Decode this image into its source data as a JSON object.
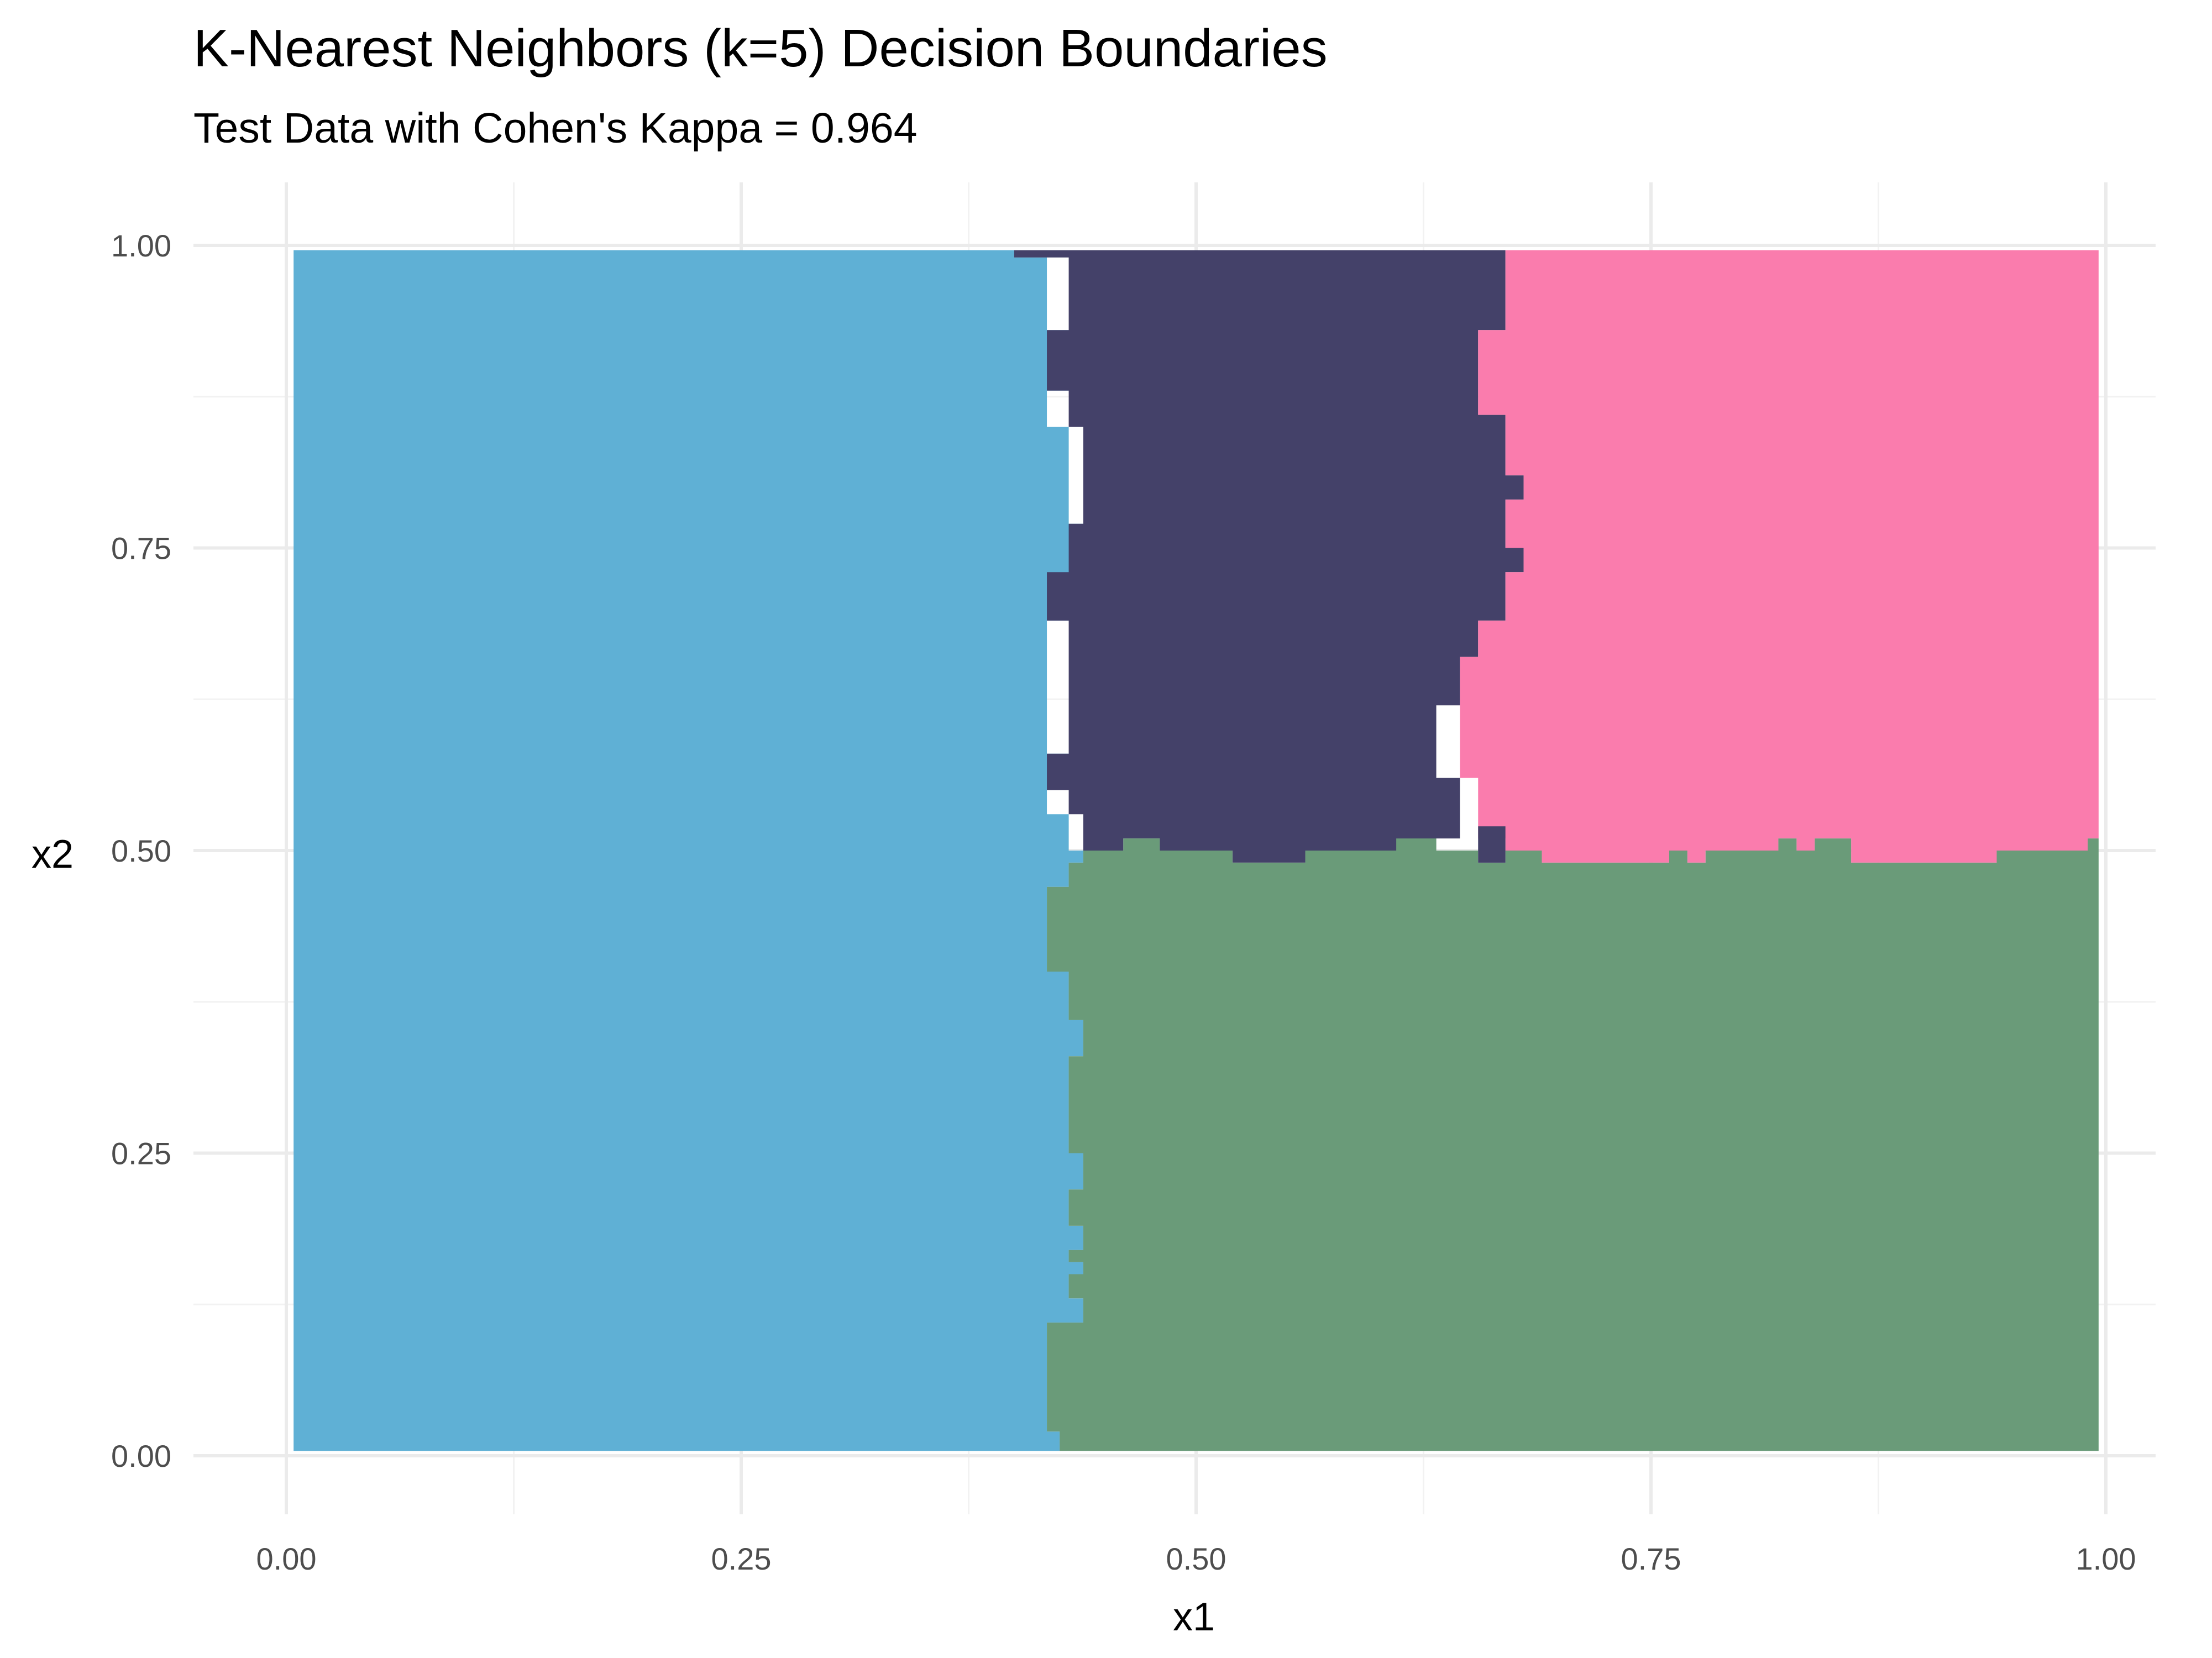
{
  "chart_data": {
    "type": "heatmap",
    "title": "K-Nearest Neighbors (k=5) Decision Boundaries",
    "subtitle": "Test Data with Cohen's Kappa = 0.964",
    "xlabel": "x1",
    "ylabel": "x2",
    "xlim": [
      0,
      1
    ],
    "ylim": [
      0,
      1
    ],
    "x_ticks": [
      "0.00",
      "0.25",
      "0.50",
      "0.75",
      "1.00"
    ],
    "y_ticks": [
      "0.00",
      "0.25",
      "0.50",
      "0.75",
      "1.00"
    ],
    "grid": true,
    "legend": "none",
    "colors": {
      "left": "#5fb0d5",
      "top_middle": "#444169",
      "top_right": "#fa7cad",
      "bottom_right": "#6a9b79"
    },
    "regions": [
      {
        "class": "left",
        "description": "x1 below the vertical boundary",
        "boundary_x1_by_x2": [
          [
            0.0,
            0.425
          ],
          [
            0.11,
            0.425
          ],
          [
            0.11,
            0.418
          ],
          [
            0.13,
            0.418
          ],
          [
            0.13,
            0.43
          ],
          [
            0.15,
            0.43
          ],
          [
            0.15,
            0.43
          ],
          [
            0.17,
            0.43
          ],
          [
            0.17,
            0.438
          ],
          [
            0.19,
            0.438
          ],
          [
            0.19,
            0.425
          ],
          [
            0.22,
            0.425
          ],
          [
            0.22,
            0.438
          ],
          [
            0.25,
            0.438
          ],
          [
            0.25,
            0.43
          ],
          [
            0.33,
            0.43
          ],
          [
            0.33,
            0.438
          ],
          [
            0.37,
            0.438
          ],
          [
            0.37,
            0.425
          ],
          [
            0.43,
            0.425
          ],
          [
            0.43,
            0.418
          ],
          [
            0.47,
            0.418
          ],
          [
            0.47,
            0.43
          ],
          [
            0.49,
            0.43
          ],
          [
            0.49,
            0.438
          ],
          [
            0.53,
            0.438
          ],
          [
            0.53,
            0.425
          ],
          [
            0.55,
            0.425
          ],
          [
            0.55,
            0.418
          ],
          [
            0.58,
            0.418
          ],
          [
            0.58,
            0.418
          ],
          [
            0.69,
            0.418
          ],
          [
            0.69,
            0.425
          ],
          [
            0.73,
            0.425
          ],
          [
            0.73,
            0.438
          ],
          [
            0.8,
            0.438
          ],
          [
            0.8,
            0.425
          ],
          [
            0.86,
            0.425
          ],
          [
            0.86,
            0.418
          ],
          [
            0.88,
            0.418
          ],
          [
            0.88,
            0.425
          ],
          [
            0.93,
            0.425
          ],
          [
            0.93,
            0.418
          ],
          [
            0.99,
            0.418
          ],
          [
            0.99,
            0.405
          ],
          [
            1.0,
            0.405
          ]
        ]
      },
      {
        "class": "top_middle",
        "description": "x2 above about 0.5, x1 between the left boundary and about 0.65"
      },
      {
        "class": "top_right",
        "description": "x2 above about 0.5, x1 above about 0.65"
      },
      {
        "class": "bottom_right",
        "description": "x2 below about 0.5, x1 right of the left boundary"
      }
    ]
  }
}
